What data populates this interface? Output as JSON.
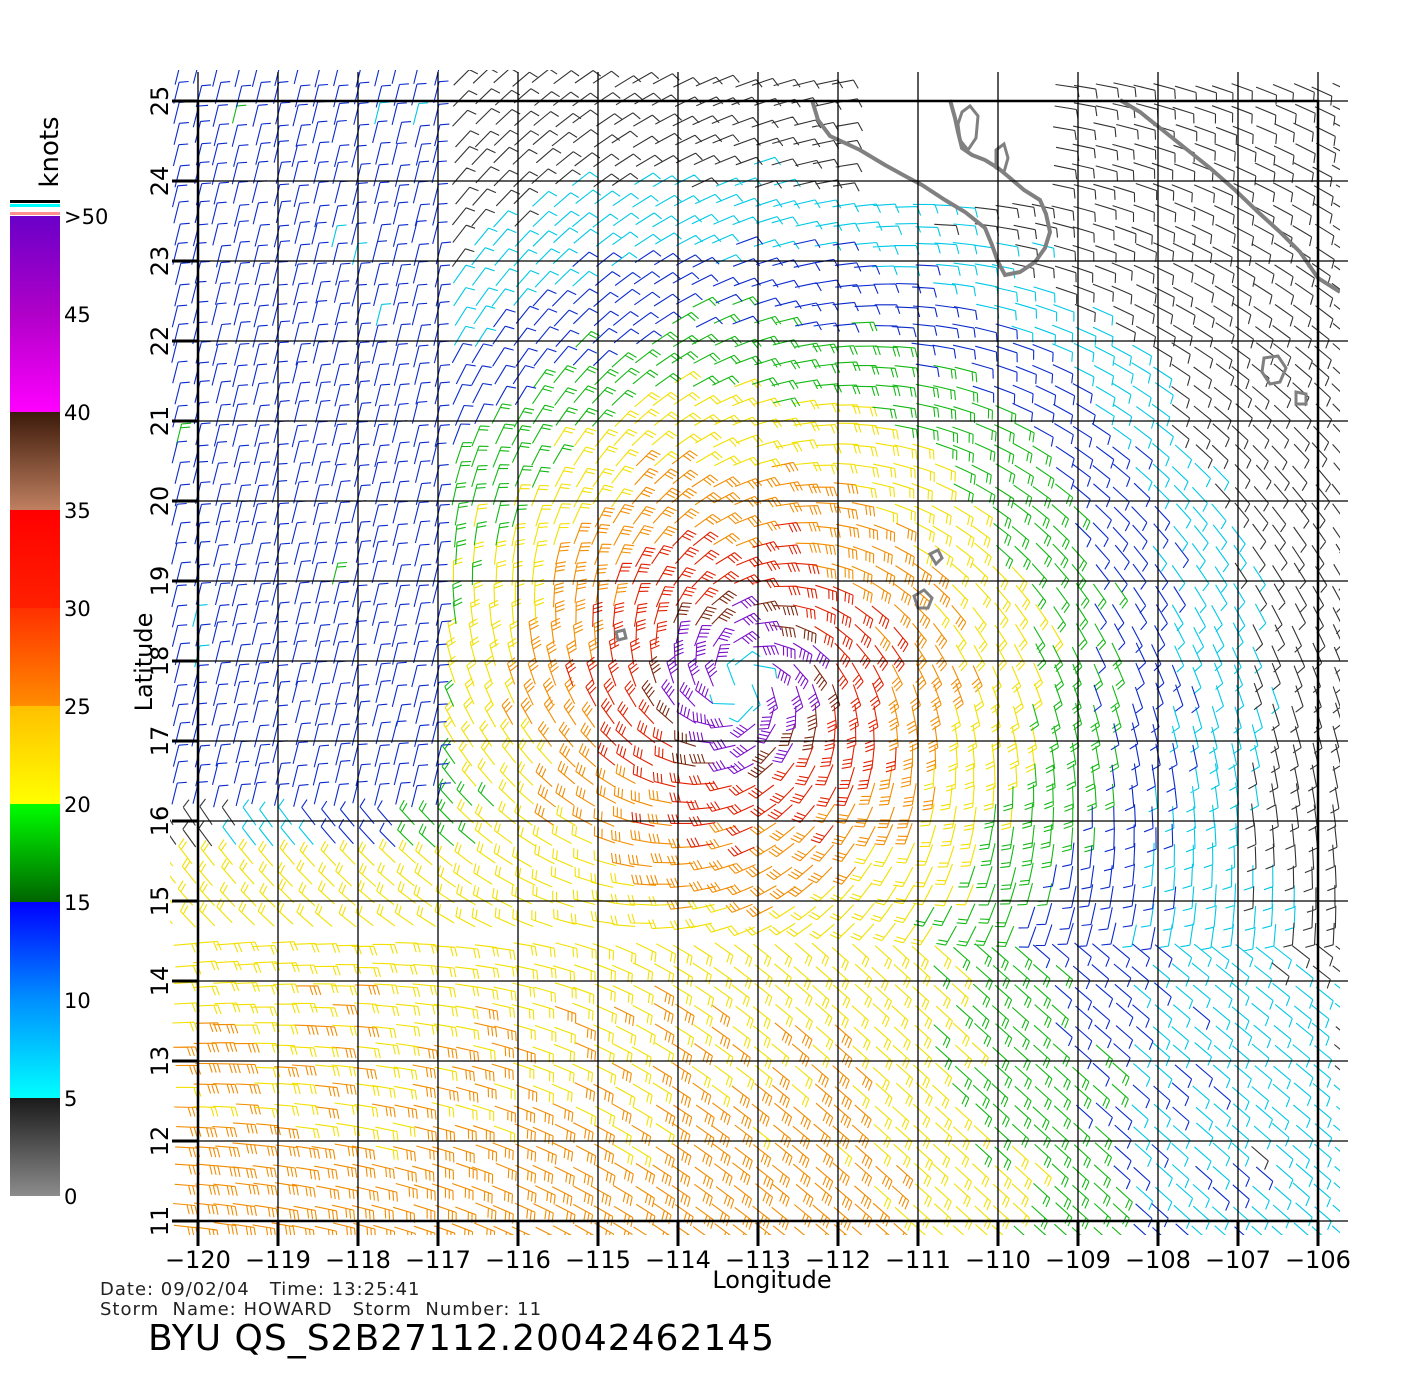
{
  "plot": {
    "xlabel": "Longitude",
    "ylabel": "Latitude",
    "lon_range": [
      -120,
      -106
    ],
    "lat_range": [
      11,
      25
    ],
    "lon_ticks": [
      "−120",
      "−119",
      "−118",
      "−117",
      "−116",
      "−115",
      "−114",
      "−113",
      "−112",
      "−111",
      "−110",
      "−109",
      "−108",
      "−107",
      "−106"
    ],
    "lat_ticks": [
      "11",
      "12",
      "13",
      "14",
      "15",
      "16",
      "17",
      "18",
      "19",
      "20",
      "21",
      "22",
      "23",
      "24",
      "25"
    ],
    "grid": true,
    "storm_center": {
      "lon": -113.2,
      "lat": 17.7
    }
  },
  "colorbar": {
    "title": "knots",
    "labels": [
      "0",
      "5",
      "10",
      "15",
      "20",
      "25",
      "30",
      "35",
      "40",
      "45",
      ">50"
    ],
    "bands": [
      {
        "from": 0,
        "to": 5,
        "colors": [
          "#8c8c8c",
          "#1a1a1a"
        ]
      },
      {
        "from": 5,
        "to": 10,
        "colors": [
          "#00ffff",
          "#0090ff"
        ]
      },
      {
        "from": 10,
        "to": 15,
        "colors": [
          "#0090ff",
          "#0000ff"
        ]
      },
      {
        "from": 15,
        "to": 20,
        "colors": [
          "#006400",
          "#00ff00"
        ]
      },
      {
        "from": 20,
        "to": 25,
        "colors": [
          "#ffff00",
          "#ffc000"
        ]
      },
      {
        "from": 25,
        "to": 30,
        "colors": [
          "#ff8c00",
          "#ff3000"
        ]
      },
      {
        "from": 30,
        "to": 35,
        "colors": [
          "#ff2000",
          "#ff0000"
        ]
      },
      {
        "from": 35,
        "to": 40,
        "colors": [
          "#c08060",
          "#3c1a0a"
        ]
      },
      {
        "from": 40,
        "to": 45,
        "colors": [
          "#ff00ff",
          "#b000c8"
        ]
      },
      {
        "from": 45,
        "to": 50,
        "colors": [
          "#b000c8",
          "#6a00c8"
        ]
      }
    ],
    "top_stripes": [
      "#000000",
      "#00ffff",
      "#ffffff",
      "#ff9090"
    ]
  },
  "info": {
    "line1": "Date: 09/02/04   Time: 13:25:41",
    "line2": "Storm  Name: HOWARD   Storm  Number: 11",
    "product": "BYU  QS_S2B27112.20042462145"
  },
  "colors": {
    "coastline": "#808080",
    "grid": "#000000"
  }
}
